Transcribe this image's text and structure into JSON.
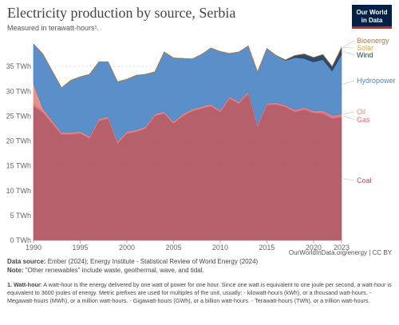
{
  "header": {
    "title": "Electricity production by source, Serbia",
    "subtitle": "Measured in terawatt-hours¹.",
    "logo_line1": "Our World",
    "logo_line2": "in Data"
  },
  "footer": {
    "source_label": "Data source:",
    "source_text": "Ember (2024); Energy Institute - Statistical Review of World Energy (2024)",
    "credit": "OurWorldInData.org/energy | CC BY",
    "note_label": "Note:",
    "note_text": "\"Other renewables\" include waste, geothermal, wave, and tidal.",
    "footnote_label": "1. Watt-hour",
    "footnote_text": ": A watt-hour is the energy delivered by one watt of power for one hour. Since one watt is equivalent to one joule per second, a watt-hour is equivalent to 3600 joules of energy. Metric prefixes are used for multiples of the unit, usually: - kilowatt-hours (kWh), or a thousand watt-hours. - Megawatt-hours (MWh), or a million watt-hours. - Gigawatt-hours (GWh), or a billion watt-hours. - Terawatt-hours (TWh), or a trillion watt-hours."
  },
  "chart_data": {
    "type": "area",
    "stacked": true,
    "x": [
      1990,
      1991,
      1992,
      1993,
      1994,
      1995,
      1996,
      1997,
      1998,
      1999,
      2000,
      2001,
      2002,
      2003,
      2004,
      2005,
      2006,
      2007,
      2008,
      2009,
      2010,
      2011,
      2012,
      2013,
      2014,
      2015,
      2016,
      2017,
      2018,
      2019,
      2020,
      2021,
      2022,
      2023
    ],
    "x_ticks": [
      "1990",
      "1995",
      "2000",
      "2005",
      "2010",
      "2015",
      "2020",
      "2023"
    ],
    "y_ticks": [
      "0 TWh",
      "5 TWh",
      "10 TWh",
      "15 TWh",
      "20 TWh",
      "25 TWh",
      "30 TWh",
      "35 TWh"
    ],
    "ylim": [
      0,
      40
    ],
    "grid": true,
    "legend_placement": "right, inline",
    "series": [
      {
        "name": "Coal",
        "color": "#b05260",
        "values": [
          27.0,
          25.7,
          23.5,
          21.3,
          21.3,
          21.5,
          20.5,
          24.0,
          24.5,
          19.5,
          21.5,
          21.8,
          22.5,
          25.0,
          25.5,
          23.5,
          25.0,
          26.0,
          26.5,
          27.0,
          25.8,
          28.5,
          27.5,
          29.5,
          22.8,
          27.2,
          27.3,
          26.8,
          25.8,
          26.3,
          25.6,
          25.5,
          24.5,
          24.8
        ]
      },
      {
        "name": "Gas",
        "color": "#de6d78",
        "values": [
          0.5,
          0.4,
          0.3,
          0.2,
          0.2,
          0.2,
          0.2,
          0.2,
          0.2,
          0.2,
          0.2,
          0.2,
          0.2,
          0.2,
          0.2,
          0.2,
          0.2,
          0.2,
          0.2,
          0.2,
          0.2,
          0.2,
          0.2,
          0.2,
          0.3,
          0.3,
          0.3,
          0.3,
          0.4,
          0.3,
          0.4,
          0.5,
          0.5,
          0.5
        ]
      },
      {
        "name": "Oil",
        "color": "#e3897e",
        "values": [
          4.0,
          0.4,
          0.3,
          0.2,
          0.2,
          0.2,
          0.2,
          0.2,
          0.2,
          0.2,
          0.2,
          0.2,
          0.2,
          0.2,
          0.2,
          0.2,
          0.2,
          0.2,
          0.2,
          0.2,
          0.2,
          0.2,
          0.2,
          0.2,
          0.1,
          0.1,
          0.1,
          0.1,
          0.1,
          0.1,
          0.1,
          0.1,
          0.1,
          0.1
        ]
      },
      {
        "name": "Hydropower",
        "color": "#4c86c6",
        "values": [
          8.0,
          11.0,
          10.0,
          9.0,
          10.5,
          11.0,
          12.5,
          11.5,
          11.0,
          12.0,
          10.5,
          11.0,
          10.5,
          8.5,
          12.0,
          12.8,
          11.2,
          10.1,
          10.5,
          11.3,
          11.8,
          8.7,
          10.0,
          9.2,
          10.7,
          11.0,
          9.5,
          9.0,
          10.5,
          9.9,
          9.8,
          10.3,
          9.0,
          12.0
        ]
      },
      {
        "name": "Wind",
        "color": "#1f3b5a",
        "values": [
          0,
          0,
          0,
          0,
          0,
          0,
          0,
          0,
          0,
          0,
          0,
          0,
          0,
          0,
          0,
          0,
          0,
          0,
          0,
          0,
          0,
          0,
          0,
          0,
          0,
          0,
          0,
          0.1,
          0.4,
          0.9,
          0.9,
          1.0,
          0.9,
          1.3
        ]
      },
      {
        "name": "Solar",
        "color": "#e6a53d",
        "values": [
          0,
          0,
          0,
          0,
          0,
          0,
          0,
          0,
          0,
          0,
          0,
          0,
          0,
          0,
          0,
          0,
          0,
          0,
          0,
          0,
          0,
          0,
          0,
          0,
          0,
          0,
          0,
          0,
          0,
          0,
          0,
          0,
          0,
          0.1
        ]
      },
      {
        "name": "Bioenergy",
        "color": "#b0793d",
        "values": [
          0,
          0,
          0,
          0,
          0,
          0,
          0,
          0,
          0,
          0,
          0,
          0,
          0,
          0,
          0,
          0,
          0,
          0,
          0,
          0,
          0,
          0,
          0,
          0,
          0,
          0,
          0,
          0,
          0,
          0,
          0,
          0,
          0,
          0.1
        ]
      }
    ]
  }
}
